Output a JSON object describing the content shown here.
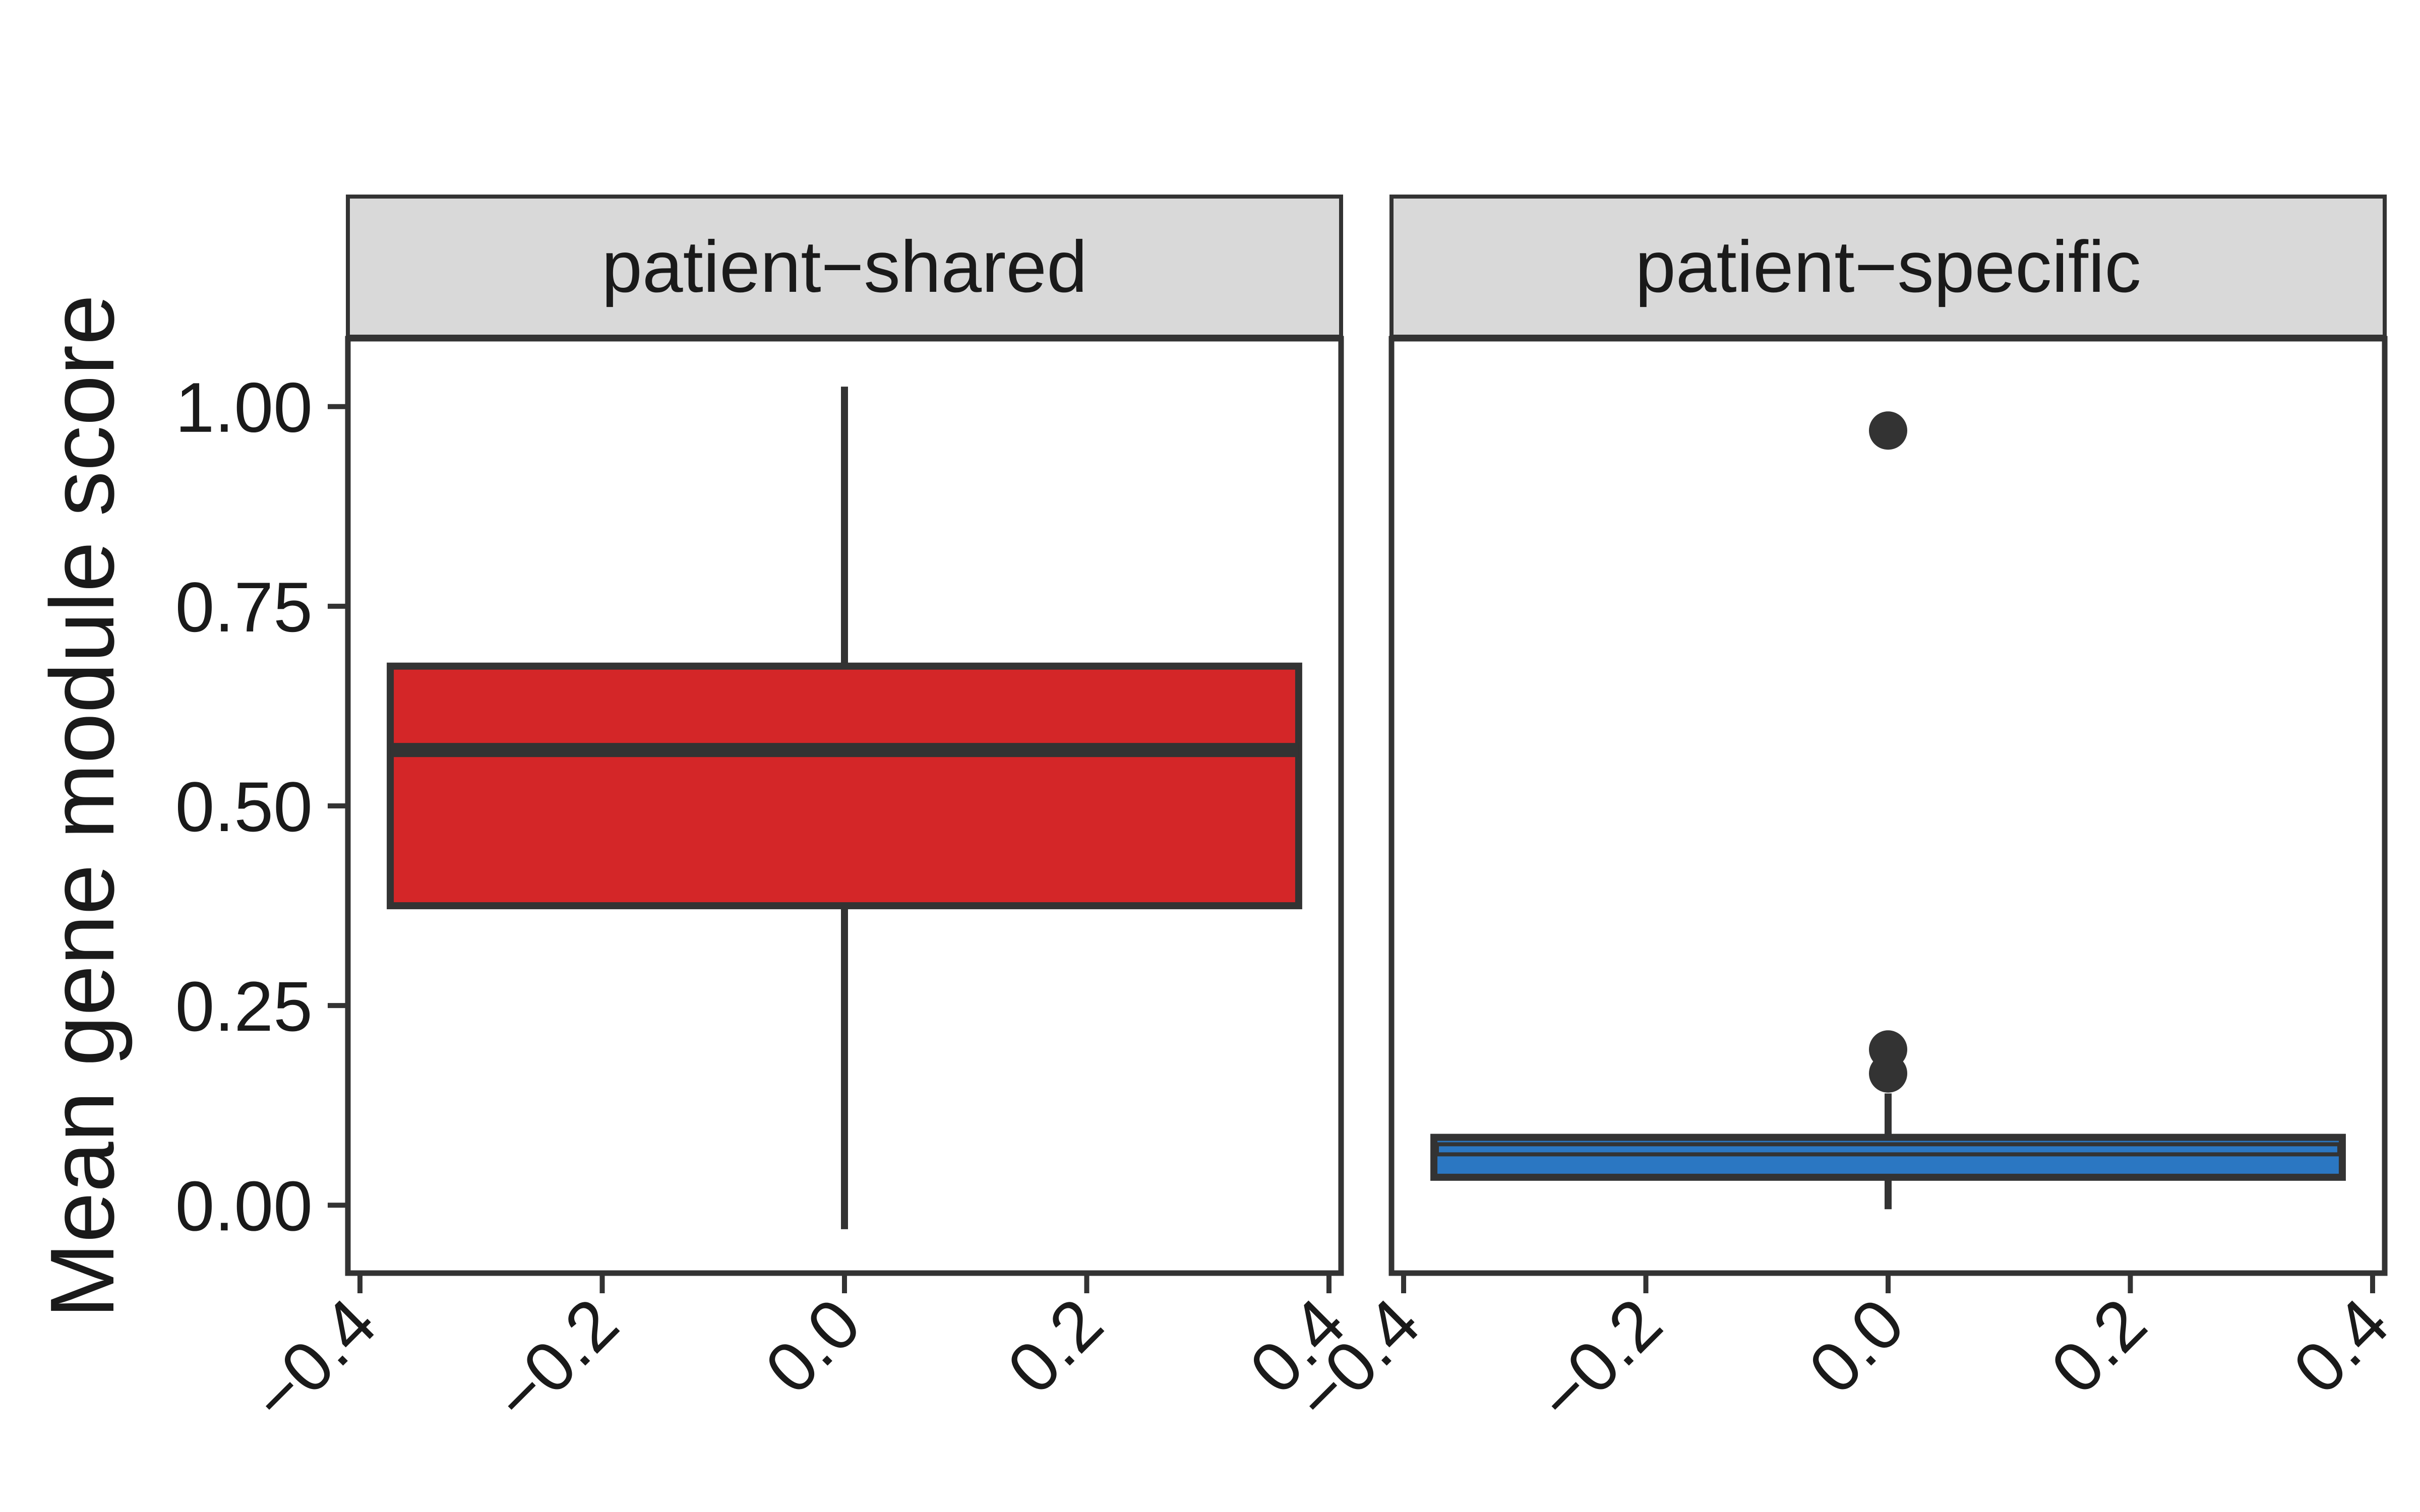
{
  "chart_data": {
    "type": "box",
    "ylabel": "Mean gene module score",
    "xlabel": "",
    "ylim": [
      -0.085,
      1.085
    ],
    "xlim": [
      -0.41,
      0.41
    ],
    "y_ticks": [
      0.0,
      0.25,
      0.5,
      0.75,
      1.0
    ],
    "y_tick_labels": [
      "0.00",
      "0.25",
      "0.50",
      "0.75",
      "1.00"
    ],
    "x_ticks": [
      -0.4,
      -0.2,
      0.0,
      0.2,
      0.4
    ],
    "x_tick_labels": [
      "−0.4",
      "−0.2",
      "0.0",
      "0.2",
      "0.4"
    ],
    "grid": false,
    "legend": "none",
    "panels": [
      {
        "label": "patient−shared",
        "color": "#d42628",
        "box": {
          "x_center": 0.0,
          "half_width": 0.375,
          "q1": 0.375,
          "median": 0.57,
          "q3": 0.675,
          "whisker_low": -0.03,
          "whisker_high": 1.025
        },
        "outliers": []
      },
      {
        "label": "patient−specific",
        "color": "#2b77c2",
        "box": {
          "x_center": 0.0,
          "half_width": 0.375,
          "q1": 0.035,
          "median": 0.07,
          "q3": 0.085,
          "whisker_low": -0.005,
          "whisker_high": 0.14
        },
        "outliers": [
          0.97,
          0.195,
          0.165
        ]
      }
    ]
  }
}
